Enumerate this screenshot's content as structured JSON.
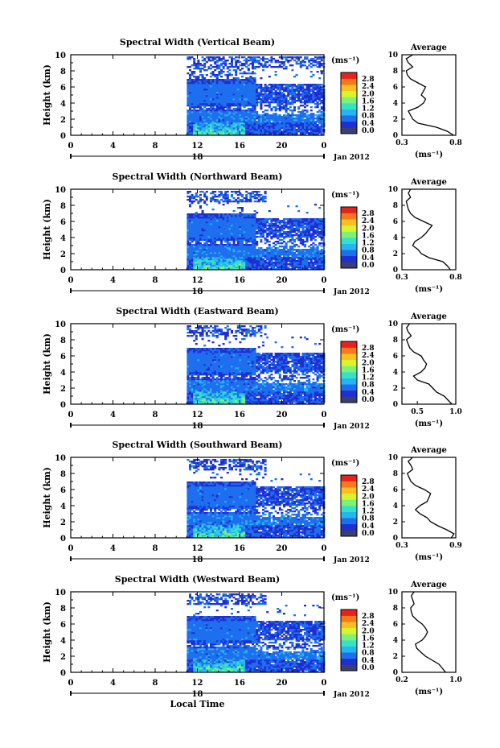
{
  "colorbar": {
    "unit": "(ms⁻¹)",
    "ticks": [
      "2.8",
      "2.4",
      "2.0",
      "1.6",
      "1.2",
      "0.8",
      "0.4",
      "0.0"
    ],
    "colors": [
      "#3a3f6e",
      "#1f2fd0",
      "#1e6ff0",
      "#23b6f2",
      "#35e2c8",
      "#7df27a",
      "#d6f52a",
      "#f7c020",
      "#f77a1a",
      "#e8221a"
    ]
  },
  "shared_axes": {
    "ylabel": "Height (km)",
    "yticks": [
      "0",
      "2",
      "4",
      "6",
      "8",
      "10"
    ],
    "xticks": [
      "0",
      "4",
      "8",
      "12",
      "16",
      "20",
      "0"
    ],
    "day_label": "18",
    "date_label": "Jan 2012",
    "xlabel": "Local Time",
    "avg_title": "Average",
    "avg_unit": "(ms⁻¹)"
  },
  "chart_data": [
    {
      "type": "heatmap",
      "title": "Spectral Width (Vertical Beam)",
      "xlim": [
        0,
        24
      ],
      "ylim": [
        0,
        10
      ],
      "zlim": [
        0.0,
        2.8
      ],
      "average_profile": {
        "type": "line",
        "xticks": [
          "0.3",
          "0.8"
        ],
        "xlim": [
          0.3,
          0.8
        ],
        "heights_km": [
          0,
          0.5,
          1,
          1.5,
          2,
          2.5,
          3,
          3.5,
          4,
          4.5,
          5,
          5.5,
          6,
          6.5,
          7,
          7.5,
          8,
          8.5,
          9,
          9.5,
          10
        ],
        "values": [
          0.78,
          0.72,
          0.62,
          0.45,
          0.4,
          0.38,
          0.36,
          0.45,
          0.5,
          0.52,
          0.48,
          0.5,
          0.52,
          0.45,
          0.38,
          0.35,
          0.34,
          0.4,
          0.36,
          0.34,
          0.4
        ]
      }
    },
    {
      "type": "heatmap",
      "title": "Spectral Width (Northward Beam)",
      "xlim": [
        0,
        24
      ],
      "ylim": [
        0,
        10
      ],
      "zlim": [
        0.0,
        2.8
      ],
      "average_profile": {
        "type": "line",
        "xticks": [
          "0.3",
          "0.8"
        ],
        "xlim": [
          0.3,
          0.8
        ],
        "heights_km": [
          0,
          0.5,
          1,
          1.5,
          2,
          2.5,
          3,
          3.5,
          4,
          4.5,
          5,
          5.5,
          6,
          6.5,
          7,
          7.5,
          8,
          8.5,
          9,
          9.5,
          10
        ],
        "values": [
          0.75,
          0.72,
          0.68,
          0.55,
          0.48,
          0.45,
          0.4,
          0.42,
          0.48,
          0.52,
          0.55,
          0.58,
          0.5,
          0.42,
          0.38,
          0.36,
          0.35,
          0.34,
          0.38,
          0.36,
          0.38
        ]
      }
    },
    {
      "type": "heatmap",
      "title": "Spectral Width (Eastward Beam)",
      "xlim": [
        0,
        24
      ],
      "ylim": [
        0,
        10
      ],
      "zlim": [
        0.0,
        2.8
      ],
      "average_profile": {
        "type": "line",
        "xticks": [
          "0.5",
          "1.0"
        ],
        "xlim": [
          0.3,
          1.0
        ],
        "heights_km": [
          0,
          0.5,
          1,
          1.5,
          2,
          2.5,
          3,
          3.5,
          4,
          4.5,
          5,
          5.5,
          6,
          6.5,
          7,
          7.5,
          8,
          8.5,
          9,
          9.5,
          10
        ],
        "values": [
          0.95,
          0.9,
          0.85,
          0.75,
          0.7,
          0.65,
          0.5,
          0.45,
          0.55,
          0.6,
          0.62,
          0.58,
          0.55,
          0.45,
          0.4,
          0.38,
          0.36,
          0.42,
          0.38,
          0.36,
          0.4
        ]
      }
    },
    {
      "type": "heatmap",
      "title": "Spectral Width (Southward Beam)",
      "xlim": [
        0,
        24
      ],
      "ylim": [
        0,
        10
      ],
      "zlim": [
        0.0,
        2.8
      ],
      "average_profile": {
        "type": "line",
        "xticks": [
          "0.3",
          "0.9"
        ],
        "xlim": [
          0.3,
          0.9
        ],
        "heights_km": [
          0,
          0.5,
          1,
          1.5,
          2,
          2.5,
          3,
          3.5,
          4,
          4.5,
          5,
          5.5,
          6,
          6.5,
          7,
          7.5,
          8,
          8.5,
          9,
          9.5,
          10
        ],
        "values": [
          0.85,
          0.88,
          0.8,
          0.7,
          0.62,
          0.58,
          0.5,
          0.45,
          0.5,
          0.58,
          0.6,
          0.62,
          0.55,
          0.45,
          0.4,
          0.38,
          0.36,
          0.42,
          0.4,
          0.37,
          0.42
        ]
      }
    },
    {
      "type": "heatmap",
      "title": "Spectral Width (Westward Beam)",
      "xlim": [
        0,
        24
      ],
      "ylim": [
        0,
        10
      ],
      "zlim": [
        0.0,
        2.8
      ],
      "average_profile": {
        "type": "line",
        "xticks": [
          "0.2",
          "1.0"
        ],
        "xlim": [
          0.2,
          1.0
        ],
        "heights_km": [
          0,
          0.5,
          1,
          1.5,
          2,
          2.5,
          3,
          3.5,
          4,
          4.5,
          5,
          5.5,
          6,
          6.5,
          7,
          7.5,
          8,
          8.5,
          9,
          9.5,
          10
        ],
        "values": [
          0.85,
          0.8,
          0.75,
          0.65,
          0.55,
          0.48,
          0.42,
          0.4,
          0.5,
          0.55,
          0.58,
          0.55,
          0.5,
          0.42,
          0.36,
          0.34,
          0.33,
          0.38,
          0.36,
          0.34,
          0.38
        ]
      }
    }
  ]
}
